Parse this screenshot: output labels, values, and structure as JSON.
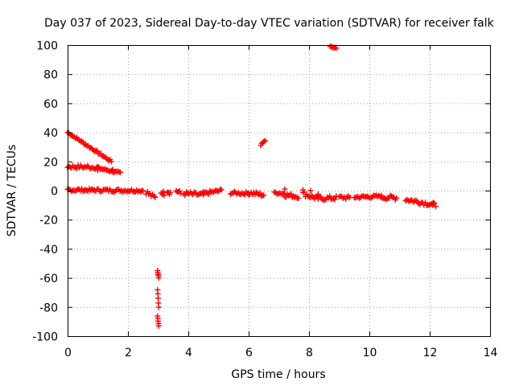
{
  "chart_data": {
    "type": "scatter",
    "title": "Day 037 of 2023, Sidereal Day-to-day VTEC variation (SDTVAR) for receiver falk",
    "xlabel": "GPS time / hours",
    "ylabel": "SDTVAR / TECUs",
    "xlim": [
      0,
      14
    ],
    "ylim": [
      -100,
      100
    ],
    "xticks": [
      0,
      2,
      4,
      6,
      8,
      10,
      12,
      14
    ],
    "yticks": [
      -100,
      -80,
      -60,
      -40,
      -20,
      0,
      20,
      40,
      60,
      80,
      100
    ],
    "grid": true,
    "marker": "+",
    "color": "#ff0000",
    "series": [
      {
        "name": "SDTVAR",
        "segments": [
          {
            "from": [
              0.0,
              40.0
            ],
            "to": [
              1.45,
              20.0
            ],
            "spread": 1.5
          },
          {
            "from": [
              0.0,
              16.5
            ],
            "to": [
              1.0,
              16.0
            ],
            "spread": 2.5
          },
          {
            "from": [
              1.0,
              15.5
            ],
            "to": [
              1.75,
              12.0
            ],
            "spread": 1.5
          },
          {
            "from": [
              0.0,
              0.5
            ],
            "to": [
              2.5,
              0.0
            ],
            "spread": 2.0
          },
          {
            "from": [
              2.6,
              -1.0
            ],
            "to": [
              2.9,
              -5.0
            ],
            "spread": 3.0
          },
          {
            "from": [
              3.1,
              -1.0
            ],
            "to": [
              3.2,
              -2.0
            ],
            "spread": 3.0
          },
          {
            "from": [
              3.3,
              0.0
            ],
            "to": [
              3.4,
              -1.5
            ],
            "spread": 3.0
          },
          {
            "from": [
              3.6,
              0.0
            ],
            "to": [
              3.75,
              -2.0
            ],
            "spread": 3.0
          },
          {
            "from": [
              3.85,
              -2.0
            ],
            "to": [
              4.5,
              -3.0
            ],
            "spread": 3.0
          },
          {
            "from": [
              4.5,
              -2.0
            ],
            "to": [
              5.1,
              0.0
            ],
            "spread": 2.5
          },
          {
            "from": [
              5.4,
              -1.5
            ],
            "to": [
              6.0,
              -2.0
            ],
            "spread": 2.0
          },
          {
            "from": [
              6.0,
              -1.5
            ],
            "to": [
              6.5,
              -3.0
            ],
            "spread": 3.0
          },
          {
            "from": [
              6.85,
              -1.5
            ],
            "to": [
              7.2,
              -2.0
            ],
            "spread": 1.5
          },
          {
            "from": [
              7.2,
              -3.0
            ],
            "to": [
              7.65,
              -4.0
            ],
            "spread": 3.0
          },
          {
            "from": [
              7.8,
              -2.0
            ],
            "to": [
              8.3,
              -5.5
            ],
            "spread": 3.5
          },
          {
            "from": [
              8.3,
              -5.5
            ],
            "to": [
              8.9,
              -5.0
            ],
            "spread": 3.0
          },
          {
            "from": [
              9.0,
              -4.5
            ],
            "to": [
              9.35,
              -5.0
            ],
            "spread": 2.5
          },
          {
            "from": [
              9.5,
              -4.5
            ],
            "to": [
              10.4,
              -4.0
            ],
            "spread": 2.0
          },
          {
            "from": [
              10.4,
              -4.5
            ],
            "to": [
              10.9,
              -5.0
            ],
            "spread": 3.0
          },
          {
            "from": [
              11.2,
              -6.0
            ],
            "to": [
              12.2,
              -10.0
            ],
            "spread": 3.0
          },
          {
            "from": [
              6.4,
              31.5
            ],
            "to": [
              6.55,
              34.0
            ],
            "spread": 1.0
          },
          {
            "from": [
              8.7,
              99.0
            ],
            "to": [
              8.9,
              98.0
            ],
            "spread": 0.5
          },
          {
            "from": [
              2.98,
              -55.0
            ],
            "to": [
              3.02,
              -60.0
            ],
            "spread": 0.5
          },
          {
            "from": [
              2.98,
              -68.0
            ],
            "to": [
              3.02,
              -80.0
            ],
            "spread": 0.5
          },
          {
            "from": [
              2.98,
              -86.0
            ],
            "to": [
              3.02,
              -93.0
            ],
            "spread": 0.5
          }
        ],
        "points": [
          [
            1.0,
            14.0
          ],
          [
            1.5,
            14.5
          ],
          [
            7.2,
            1.0
          ],
          [
            7.8,
            0.5
          ],
          [
            8.05,
            0.0
          ],
          [
            8.3,
            -2.5
          ],
          [
            10.8,
            -4.5
          ],
          [
            12.1,
            -10.0
          ]
        ]
      }
    ]
  }
}
